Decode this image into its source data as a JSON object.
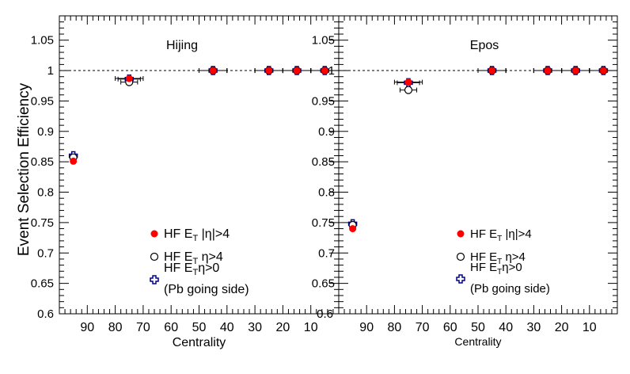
{
  "chart_data": [
    {
      "type": "scatter",
      "title": "Hijing",
      "xlabel": "Centrality",
      "ylabel": "Event Selection Efficiency",
      "xlim": [
        100,
        0
      ],
      "ylim": [
        0.6,
        1.09
      ],
      "x_reversed": true,
      "x_ticks": [
        "90",
        "80",
        "70",
        "60",
        "50",
        "40",
        "30",
        "20",
        "10"
      ],
      "y_ticks": [
        "0.6",
        "0.65",
        "0.7",
        "0.75",
        "0.8",
        "0.85",
        "0.9",
        "0.95",
        "1",
        "1.05"
      ],
      "reference_line": 1.0,
      "legend": [
        {
          "text": "HF E",
          "sub": "T",
          "rest": " |η|>4",
          "marker": "filled-circle"
        },
        {
          "text": "HF E",
          "sub": "T",
          "rest": " η>4",
          "marker": "open-circle"
        },
        {
          "text": "HF E",
          "sub": "T",
          "rest": "η>0",
          "marker": "open-cross",
          "line2": "(Pb going side)"
        }
      ],
      "series": [
        {
          "name": "HF E_T |η|>4",
          "marker": "filled-circle",
          "color": "#ff0000",
          "x": [
            95,
            75,
            45,
            25,
            15,
            5
          ],
          "y": [
            0.851,
            0.987,
            1.0,
            1.0,
            1.0,
            1.0
          ],
          "xerr": [
            0,
            5,
            5,
            5,
            5,
            5
          ]
        },
        {
          "name": "HF E_T η>4",
          "marker": "open-circle",
          "color": "#000000",
          "x": [
            95,
            75,
            45,
            25,
            15,
            5
          ],
          "y": [
            0.857,
            0.981,
            1.0,
            1.0,
            1.0,
            1.0
          ],
          "xerr": [
            0,
            3,
            5,
            5,
            5,
            5
          ]
        },
        {
          "name": "HF E_T η>0",
          "marker": "open-cross",
          "color": "#00008b",
          "x": [
            95,
            75,
            45,
            25,
            15,
            5
          ],
          "y": [
            0.86,
            0.986,
            1.0,
            1.0,
            1.0,
            1.0
          ],
          "xerr": [
            0,
            4,
            5,
            5,
            5,
            5
          ]
        }
      ]
    },
    {
      "type": "scatter",
      "title": "Epos",
      "xlabel": "Centrality",
      "ylabel": "",
      "xlim": [
        100,
        0
      ],
      "ylim": [
        0.6,
        1.09
      ],
      "x_reversed": true,
      "x_ticks": [
        "90",
        "80",
        "70",
        "60",
        "50",
        "40",
        "30",
        "20",
        "10"
      ],
      "y_ticks": [
        "0.6",
        "0.65",
        "0.7",
        "0.75",
        "0.8",
        "0.85",
        "0.9",
        "0.95",
        "1",
        "1.05"
      ],
      "reference_line": 1.0,
      "legend": [
        {
          "text": "HF E",
          "sub": "T",
          "rest": " |η|>4",
          "marker": "filled-circle"
        },
        {
          "text": "HF E",
          "sub": "T",
          "rest": " η>4",
          "marker": "open-circle"
        },
        {
          "text": "HF E",
          "sub": "T",
          "rest": "η>0",
          "marker": "open-cross",
          "line2": "(Pb going side)"
        }
      ],
      "series": [
        {
          "name": "HF E_T |η|>4",
          "marker": "filled-circle",
          "color": "#ff0000",
          "x": [
            95,
            75,
            45,
            25,
            15,
            5
          ],
          "y": [
            0.74,
            0.981,
            1.0,
            1.0,
            1.0,
            1.0
          ],
          "xerr": [
            0,
            5,
            5,
            5,
            5,
            5
          ]
        },
        {
          "name": "HF E_T η>4",
          "marker": "open-circle",
          "color": "#000000",
          "x": [
            95,
            75,
            45,
            25,
            15,
            5
          ],
          "y": [
            0.746,
            0.968,
            1.0,
            1.0,
            1.0,
            1.0
          ],
          "xerr": [
            0,
            3,
            5,
            5,
            5,
            5
          ]
        },
        {
          "name": "HF E_T η>0",
          "marker": "open-cross",
          "color": "#00008b",
          "x": [
            95,
            75,
            45,
            25,
            15,
            5
          ],
          "y": [
            0.748,
            0.98,
            1.0,
            1.0,
            1.0,
            1.0
          ],
          "xerr": [
            0,
            4,
            5,
            5,
            5,
            5
          ]
        }
      ]
    }
  ]
}
